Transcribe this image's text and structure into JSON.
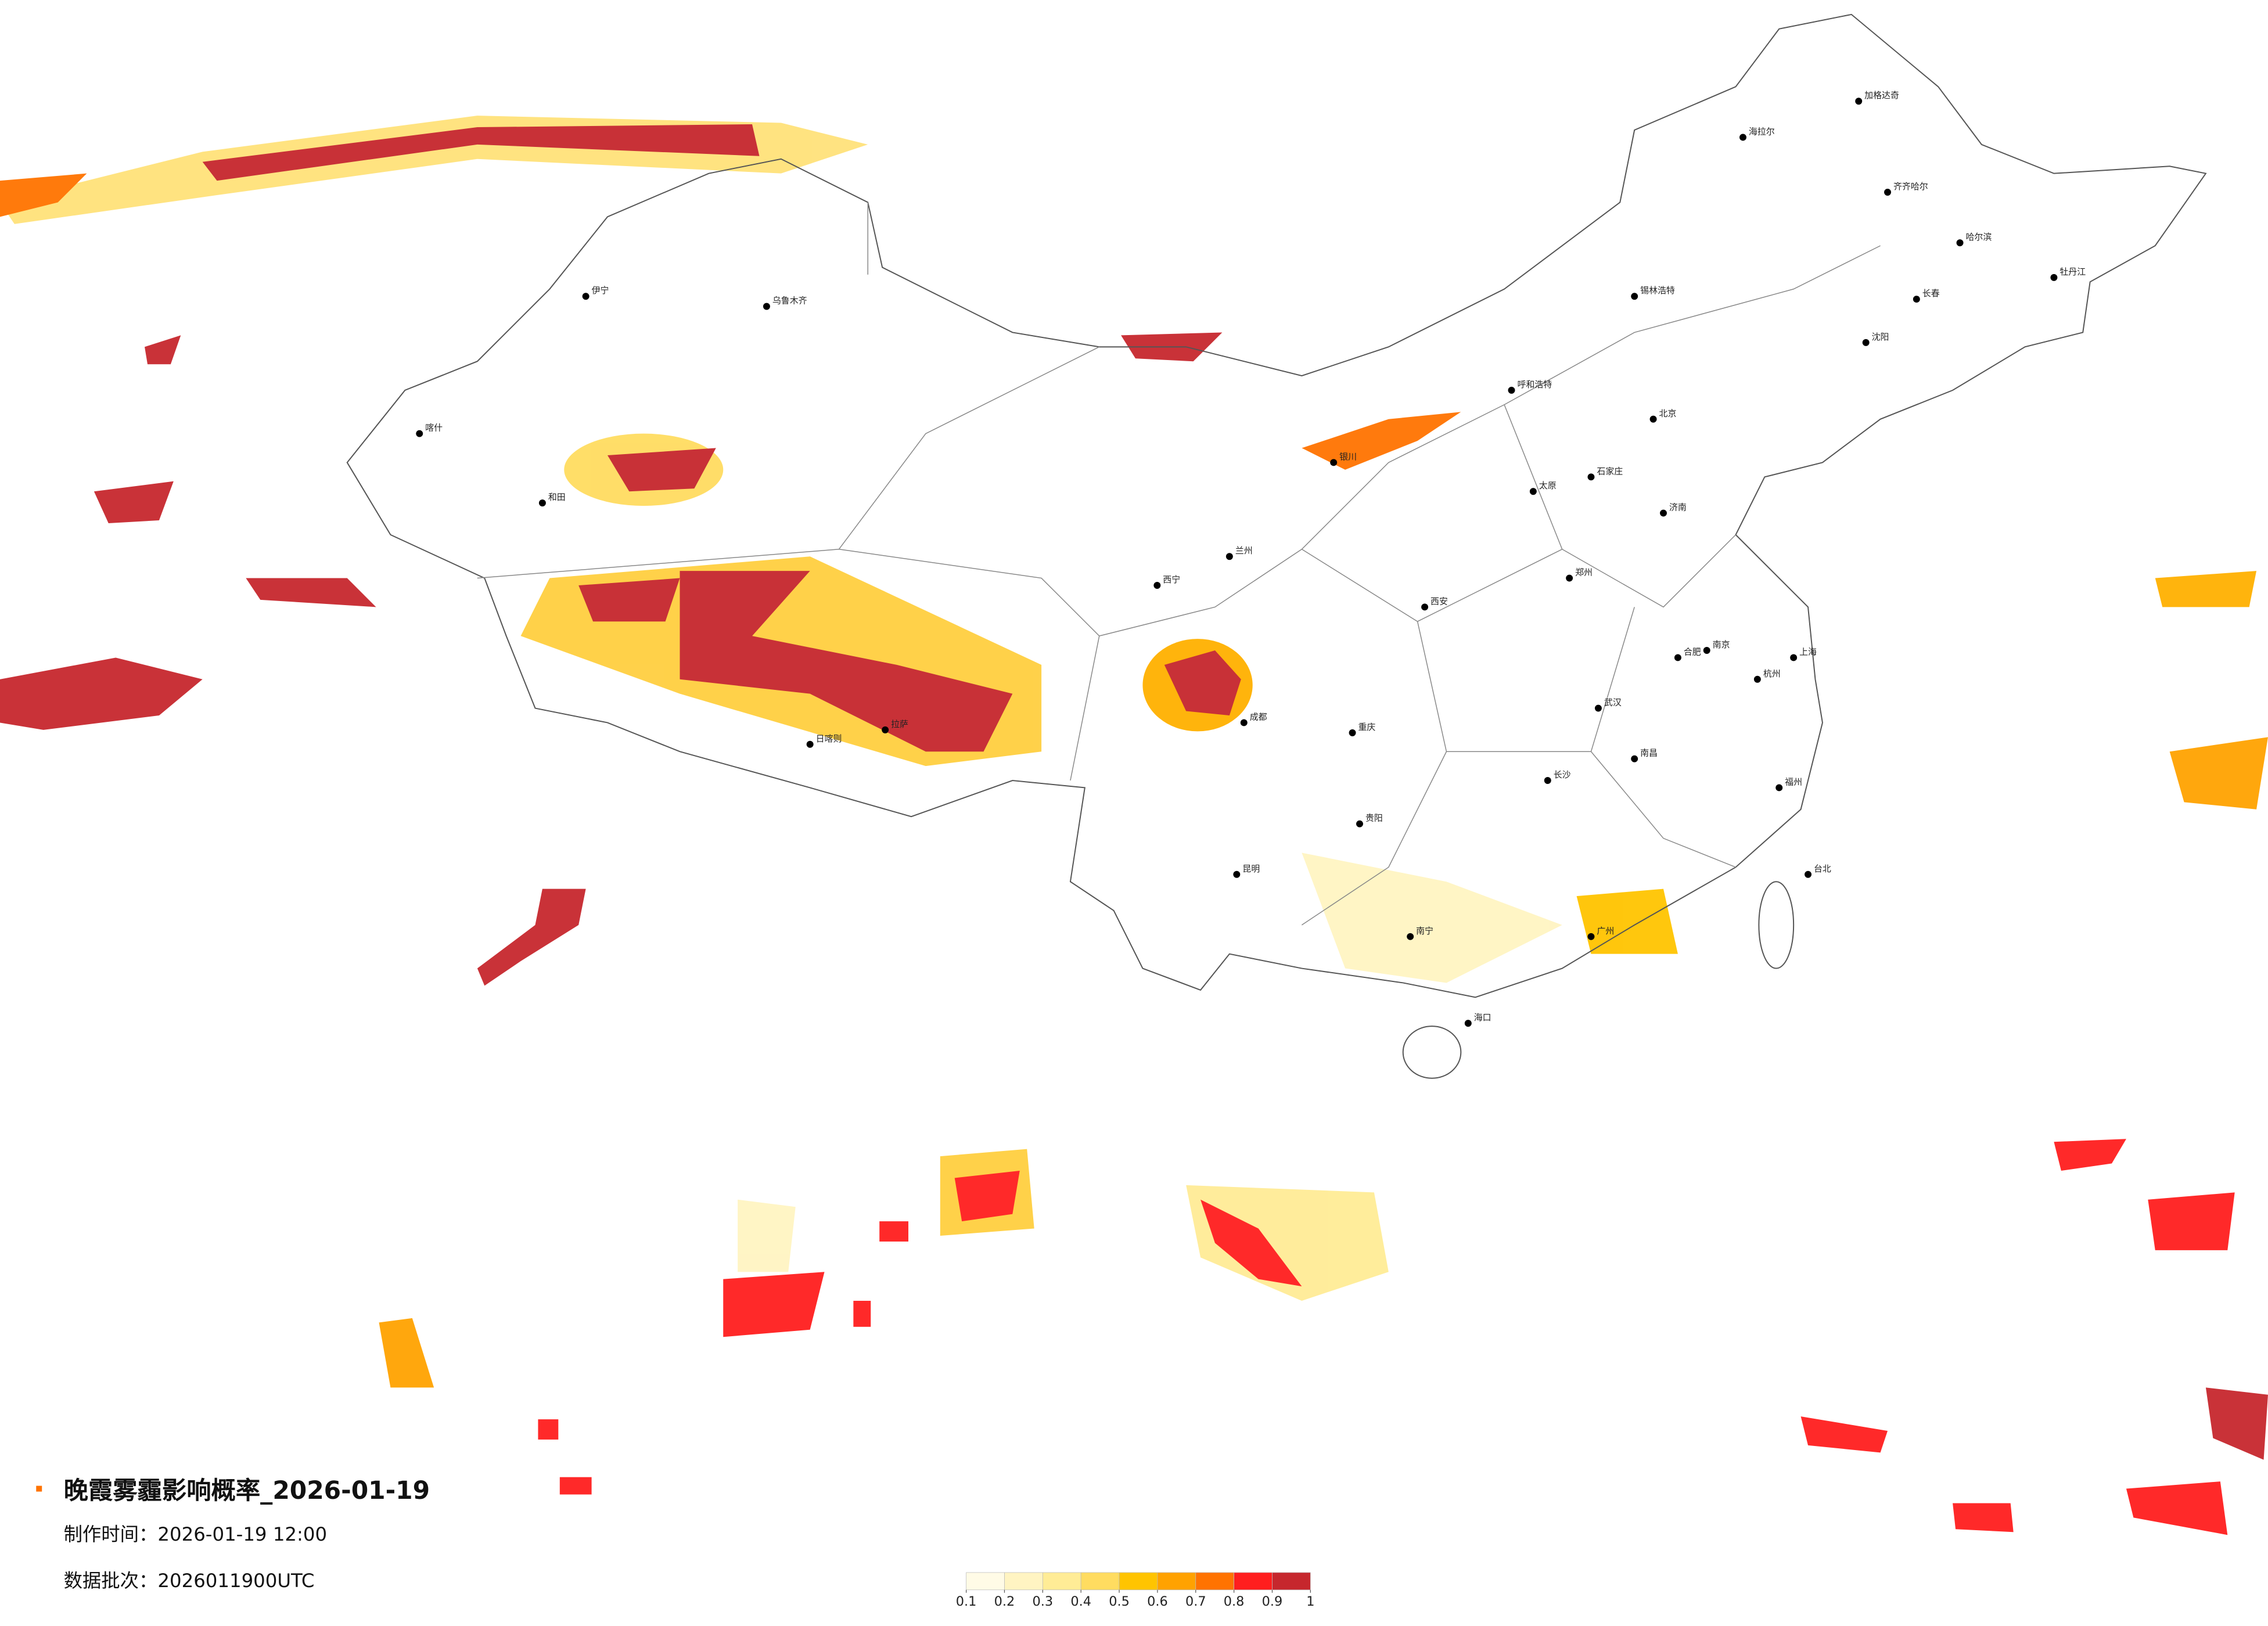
{
  "header": {
    "title": "晚霞雾霾影响概率_2026-01-19",
    "made_time": "制作时间：2026-01-19 12:00",
    "batch": "数据批次：2026011900UTC"
  },
  "colorbar": {
    "ticks": [
      0.1,
      0.2,
      0.3,
      0.4,
      0.5,
      0.6,
      0.7,
      0.8,
      0.9,
      1
    ],
    "colors": [
      "#fffbe6",
      "#fff4c2",
      "#ffec96",
      "#ffdc60",
      "#ffc400",
      "#ffa200",
      "#ff7300",
      "#ff1e1e",
      "#c6272d"
    ]
  },
  "cities": [
    "哈尔滨",
    "长春",
    "沈阳",
    "呼和浩特",
    "乌鲁木齐",
    "拉萨",
    "西宁",
    "兰州",
    "银川",
    "成都",
    "重庆",
    "贵阳",
    "昆明",
    "南宁",
    "广州",
    "福州",
    "台北",
    "海口",
    "武汉",
    "长沙",
    "南昌",
    "杭州",
    "上海",
    "南京",
    "合肥",
    "郑州",
    "济南",
    "石家庄",
    "太原",
    "西安",
    "北京",
    "喀什",
    "和田",
    "伊宁",
    "海拉尔",
    "加格达奇",
    "齐齐哈尔",
    "牡丹江",
    "日喀则",
    "锡林浩特"
  ]
}
